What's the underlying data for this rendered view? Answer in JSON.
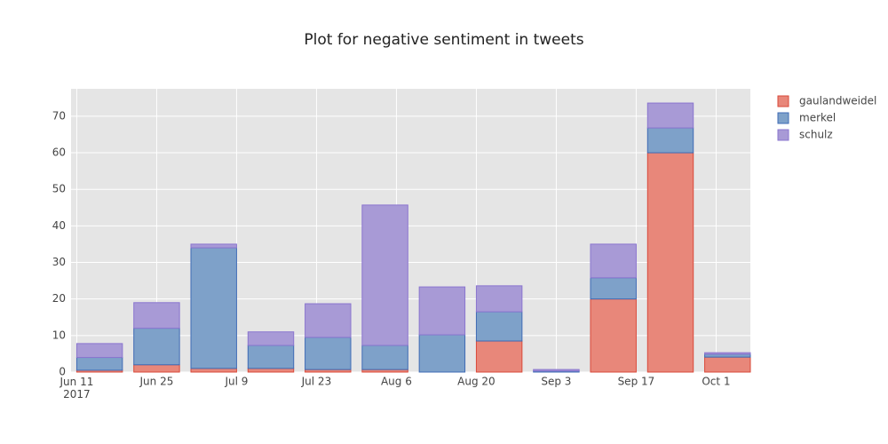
{
  "chart_data": {
    "type": "stacked_bar",
    "title": "Plot for negative sentiment in tweets",
    "x": [
      "2017-06-15",
      "2017-06-25",
      "2017-07-05",
      "2017-07-15",
      "2017-07-25",
      "2017-08-04",
      "2017-08-14",
      "2017-08-24",
      "2017-09-03",
      "2017-09-13",
      "2017-09-23",
      "2017-10-03"
    ],
    "series": [
      {
        "name": "gaulandweidel",
        "color": "#e8877a",
        "line_color": "#d9493a",
        "values": [
          0.5,
          2,
          1,
          1,
          0.7,
          0.7,
          0,
          8.5,
          0,
          20,
          60,
          4.1
        ]
      },
      {
        "name": "merkel",
        "color": "#7ea1c9",
        "line_color": "#3f6bb5",
        "values": [
          3.5,
          10,
          33,
          6.3,
          8.8,
          6.6,
          10.2,
          8,
          0.3,
          5.8,
          6.8,
          0.8
        ]
      },
      {
        "name": "schulz",
        "color": "#a89ad6",
        "line_color": "#8a75cf",
        "values": [
          3.8,
          7,
          1,
          3.7,
          9.2,
          38.4,
          13.1,
          7.1,
          0.4,
          9.2,
          6.8,
          0.4
        ]
      }
    ],
    "xlim": [
      "2017-06-10",
      "2017-10-07"
    ],
    "xticks": [
      {
        "value": "2017-06-11",
        "label": "Jun 11\n2017"
      },
      {
        "value": "2017-06-25",
        "label": "Jun 25"
      },
      {
        "value": "2017-07-09",
        "label": "Jul 9"
      },
      {
        "value": "2017-07-23",
        "label": "Jul 23"
      },
      {
        "value": "2017-08-06",
        "label": "Aug 6"
      },
      {
        "value": "2017-08-20",
        "label": "Aug 20"
      },
      {
        "value": "2017-09-03",
        "label": "Sep 3"
      },
      {
        "value": "2017-09-17",
        "label": "Sep 17"
      },
      {
        "value": "2017-10-01",
        "label": "Oct 1"
      }
    ],
    "ylim": [
      0,
      77.5
    ],
    "yticks": [
      0,
      10,
      20,
      30,
      40,
      50,
      60,
      70
    ],
    "grid": true,
    "legend": "right"
  }
}
